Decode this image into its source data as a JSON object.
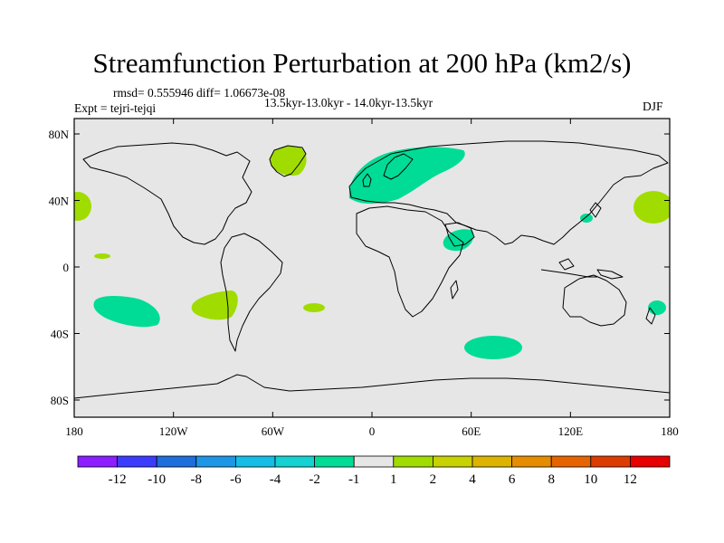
{
  "title": "Streamfunction Perturbation at 200 hPa (km2/s)",
  "stats": "rmsd= 0.555946 diff= 1.06673e-08",
  "expt": "Expt = tejri-tejqi",
  "period": "13.5kyr-13.0kyr - 14.0kyr-13.5kyr",
  "season": "DJF",
  "map": {
    "lon_labels": [
      "180",
      "120W",
      "60W",
      "0",
      "60E",
      "120E",
      "180"
    ],
    "lat_labels": [
      "80N",
      "40N",
      "0",
      "40S",
      "80S"
    ],
    "background_color": "#e6e6e6"
  },
  "anomalies": [
    {
      "region": "Greenland",
      "sign": "positive",
      "color": "#a0dc00"
    },
    {
      "region": "Europe",
      "sign": "negative",
      "color": "#00dc96"
    },
    {
      "region": "NE Pacific",
      "sign": "positive",
      "color": "#a0dc00"
    },
    {
      "region": "NW Pacific",
      "sign": "positive",
      "color": "#a0dc00"
    },
    {
      "region": "East Asia",
      "sign": "negative",
      "color": "#00dc96"
    },
    {
      "region": "Arabia",
      "sign": "negative",
      "color": "#00dc96"
    },
    {
      "region": "Tropical Pacific",
      "sign": "positive",
      "color": "#a0dc00"
    },
    {
      "region": "South Pacific",
      "sign": "negative",
      "color": "#00dc96"
    },
    {
      "region": "South America",
      "sign": "positive",
      "color": "#a0dc00"
    },
    {
      "region": "South Atlantic",
      "sign": "positive",
      "color": "#a0dc00"
    },
    {
      "region": "Southern Indian Ocean",
      "sign": "negative",
      "color": "#00dc96"
    },
    {
      "region": "New Zealand",
      "sign": "negative",
      "color": "#00dc96"
    }
  ],
  "colorbar": {
    "labels": [
      "-12",
      "-10",
      "-8",
      "-6",
      "-4",
      "-2",
      "-1",
      "1",
      "2",
      "4",
      "6",
      "8",
      "10",
      "12"
    ],
    "colors": [
      "#8c1eff",
      "#3c3cff",
      "#1e6edc",
      "#1e96e6",
      "#14bee6",
      "#14d2d2",
      "#00dc96",
      "#e6e6e6",
      "#a0dc00",
      "#c8d200",
      "#dcb400",
      "#e68c00",
      "#e66400",
      "#dc3c00",
      "#e60000"
    ]
  }
}
